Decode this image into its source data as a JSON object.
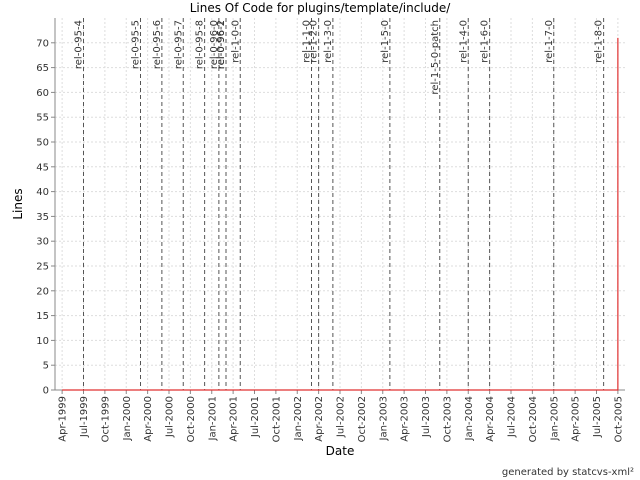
{
  "chart_data": {
    "type": "line",
    "title": "Lines Of Code for plugins/template/include/",
    "x_label": "Date",
    "y_label": "Lines",
    "footer": "generated by statcvs-xml²",
    "xlim": [
      "1999-03",
      "2005-11"
    ],
    "xticks": [
      {
        "value": "1999-04",
        "label": "Apr-1999"
      },
      {
        "value": "1999-07",
        "label": "Jul-1999"
      },
      {
        "value": "1999-10",
        "label": "Oct-1999"
      },
      {
        "value": "2000-01",
        "label": "Jan-2000"
      },
      {
        "value": "2000-04",
        "label": "Apr-2000"
      },
      {
        "value": "2000-07",
        "label": "Jul-2000"
      },
      {
        "value": "2000-10",
        "label": "Oct-2000"
      },
      {
        "value": "2001-01",
        "label": "Jan-2001"
      },
      {
        "value": "2001-04",
        "label": "Apr-2001"
      },
      {
        "value": "2001-07",
        "label": "Jul-2001"
      },
      {
        "value": "2001-10",
        "label": "Oct-2001"
      },
      {
        "value": "2002-01",
        "label": "Jan-2002"
      },
      {
        "value": "2002-04",
        "label": "Apr-2002"
      },
      {
        "value": "2002-07",
        "label": "Jul-2002"
      },
      {
        "value": "2002-10",
        "label": "Oct-2002"
      },
      {
        "value": "2003-01",
        "label": "Jan-2003"
      },
      {
        "value": "2003-04",
        "label": "Apr-2003"
      },
      {
        "value": "2003-07",
        "label": "Jul-2003"
      },
      {
        "value": "2003-10",
        "label": "Oct-2003"
      },
      {
        "value": "2004-01",
        "label": "Jan-2004"
      },
      {
        "value": "2004-04",
        "label": "Apr-2004"
      },
      {
        "value": "2004-07",
        "label": "Jul-2004"
      },
      {
        "value": "2004-10",
        "label": "Oct-2004"
      },
      {
        "value": "2005-01",
        "label": "Jan-2005"
      },
      {
        "value": "2005-04",
        "label": "Apr-2005"
      },
      {
        "value": "2005-07",
        "label": "Jul-2005"
      },
      {
        "value": "2005-10",
        "label": "Oct-2005"
      }
    ],
    "ylim": [
      0,
      75
    ],
    "yticks": [
      0,
      5,
      10,
      15,
      20,
      25,
      30,
      35,
      40,
      45,
      50,
      55,
      60,
      65,
      70
    ],
    "grid": true,
    "series": [
      {
        "color": "#e03030",
        "x": [
          "1999-04",
          "2005-10",
          "2005-10"
        ],
        "values": [
          0,
          0,
          71
        ]
      }
    ],
    "releases": [
      {
        "label": "rel-0-95-4",
        "x": "1999-07"
      },
      {
        "label": "rel-0-95-5",
        "x": "2000-03"
      },
      {
        "label": "rel-0-95-6",
        "x": "2000-06"
      },
      {
        "label": "rel-0-95-7",
        "x": "2000-09"
      },
      {
        "label": "rel-0-95-8",
        "x": "2000-12"
      },
      {
        "label": "rel-0-96-0",
        "x": "2001-02"
      },
      {
        "label": "rel-0-96-1",
        "x": "2001-03"
      },
      {
        "label": "rel-0-96-2",
        "x": "2001-03"
      },
      {
        "label": "rel-1-0-0",
        "x": "2001-05"
      },
      {
        "label": "rel-1-1-0",
        "x": "2002-03"
      },
      {
        "label": "rel-1-2-0",
        "x": "2002-04"
      },
      {
        "label": "rel-1-3-0",
        "x": "2002-06"
      },
      {
        "label": "rel-1-5-0",
        "x": "2003-02"
      },
      {
        "label": "rel-1-5-0-patch",
        "x": "2003-09"
      },
      {
        "label": "rel-1-4-0",
        "x": "2004-01"
      },
      {
        "label": "rel-1-6-0",
        "x": "2004-04"
      },
      {
        "label": "rel-1-7-0",
        "x": "2005-01"
      },
      {
        "label": "rel-1-8-0",
        "x": "2005-08"
      }
    ]
  }
}
